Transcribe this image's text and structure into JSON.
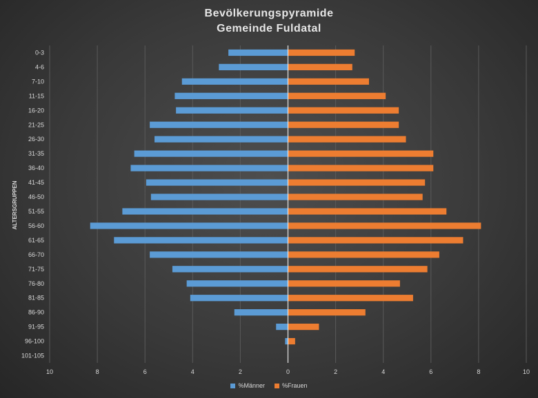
{
  "chart_data": {
    "type": "bar",
    "orientation": "horizontal-pyramid",
    "title_line1": "Bevölkerungspyramide",
    "title_line2": "Gemeinde Fuldatal",
    "ylabel": "ALTERSGRUPPEN",
    "xlim": [
      -10,
      10
    ],
    "x_ticks": [
      -10,
      -8,
      -6,
      -4,
      -2,
      0,
      2,
      4,
      6,
      8,
      10
    ],
    "x_tick_labels": [
      "10",
      "8",
      "6",
      "4",
      "2",
      "0",
      "2",
      "4",
      "6",
      "8",
      "10"
    ],
    "categories": [
      "0-3",
      "4-6",
      "7-10",
      "11-15",
      "16-20",
      "21-25",
      "26-30",
      "31-35",
      "36-40",
      "41-45",
      "46-50",
      "51-55",
      "56-60",
      "61-65",
      "66-70",
      "71-75",
      "76-80",
      "81-85",
      "86-90",
      "91-95",
      "96-100",
      "101-105"
    ],
    "series": [
      {
        "name": "%Männer",
        "color": "#5b9bd5",
        "values": [
          2.5,
          2.9,
          4.45,
          4.75,
          4.7,
          5.8,
          5.6,
          6.45,
          6.6,
          5.95,
          5.75,
          6.95,
          8.3,
          7.3,
          5.8,
          4.85,
          4.25,
          4.1,
          2.25,
          0.5,
          0.12,
          0
        ]
      },
      {
        "name": "%Frauen",
        "color": "#ed7d31",
        "values": [
          2.8,
          2.7,
          3.4,
          4.1,
          4.65,
          4.65,
          4.95,
          6.1,
          6.1,
          5.75,
          5.65,
          6.65,
          8.1,
          7.35,
          6.35,
          5.85,
          4.7,
          5.25,
          3.25,
          1.3,
          0.3,
          0
        ]
      }
    ],
    "legend_position": "bottom"
  }
}
